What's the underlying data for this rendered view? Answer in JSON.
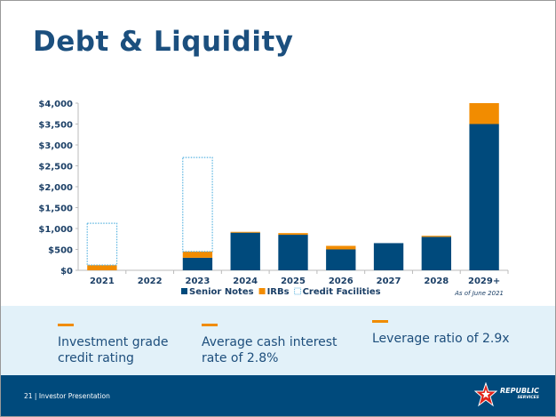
{
  "title": "Debt & Liquidity",
  "chart_data": {
    "type": "bar",
    "stacked": true,
    "categories": [
      "2021",
      "2022",
      "2023",
      "2024",
      "2025",
      "2026",
      "2027",
      "2028",
      "2029+"
    ],
    "series": [
      {
        "name": "Senior Notes",
        "color": "#004a7c",
        "values": [
          0,
          0,
          300,
          900,
          850,
          500,
          650,
          800,
          3500
        ]
      },
      {
        "name": "IRBs",
        "color": "#f28c00",
        "values": [
          125,
          0,
          150,
          20,
          40,
          85,
          0,
          25,
          500
        ]
      },
      {
        "name": "Credit Facilities",
        "color": "#5ab4e0",
        "style": "dotted-outline",
        "values": [
          1000,
          0,
          2250,
          0,
          0,
          0,
          0,
          0,
          0
        ]
      }
    ],
    "ylim": [
      0,
      4000
    ],
    "yticks": [
      "$0",
      "$500",
      "$1,000",
      "$1,500",
      "$2,000",
      "$2,500",
      "$3,000",
      "$3,500",
      "$4,000"
    ],
    "annotation": "As of June 2021",
    "legend": "bottom"
  },
  "highlights": [
    "Investment grade credit rating",
    "Average cash interest rate of 2.8%",
    "Leverage ratio of 2.9x"
  ],
  "footer": {
    "page": "21 | Investor Presentation",
    "logo": "REPUBLIC",
    "logo_sub": "SERVICES"
  }
}
